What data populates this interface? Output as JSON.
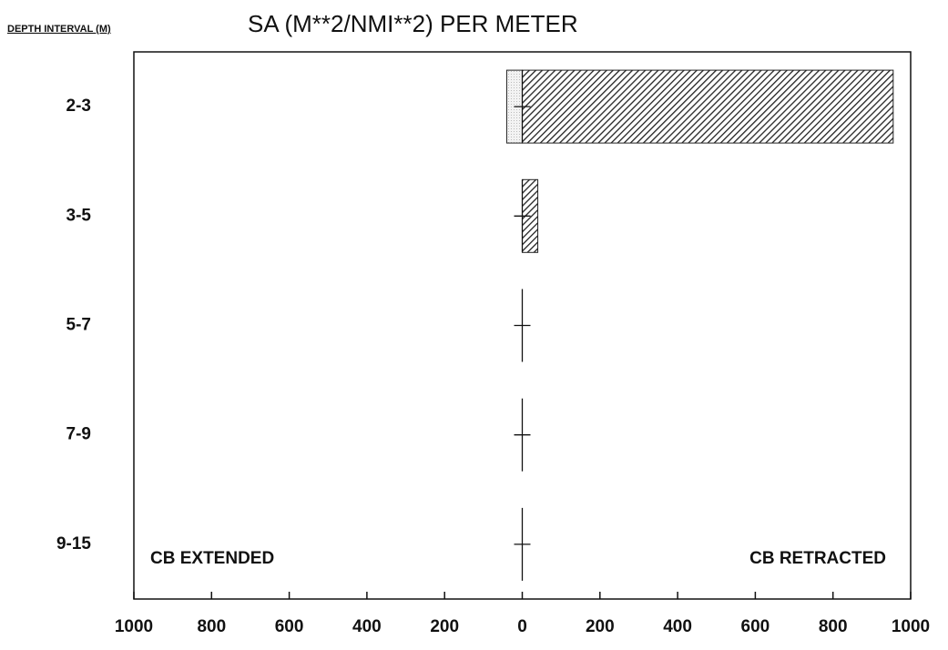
{
  "chart_data": {
    "type": "bar",
    "orientation": "horizontal",
    "title": "SA (M**2/NMI**2) PER METER",
    "ylabel": "DEPTH INTERVAL (M)",
    "categories": [
      "2-3",
      "3-5",
      "5-7",
      "7-9",
      "9-15"
    ],
    "series": [
      {
        "name": "CB EXTENDED",
        "color": "#e6e6e6",
        "values": [
          -40,
          0,
          0,
          0,
          0
        ]
      },
      {
        "name": "CB RETRACTED",
        "color": "#555555",
        "values": [
          955,
          40,
          0,
          0,
          0
        ]
      }
    ],
    "xlim": [
      -1000,
      1000
    ],
    "xticks": [
      {
        "value": -1000,
        "label": "1000"
      },
      {
        "value": -800,
        "label": "800"
      },
      {
        "value": -600,
        "label": "600"
      },
      {
        "value": -400,
        "label": "400"
      },
      {
        "value": -200,
        "label": "200"
      },
      0,
      200,
      400,
      600,
      800,
      1000
    ],
    "grid": false
  }
}
